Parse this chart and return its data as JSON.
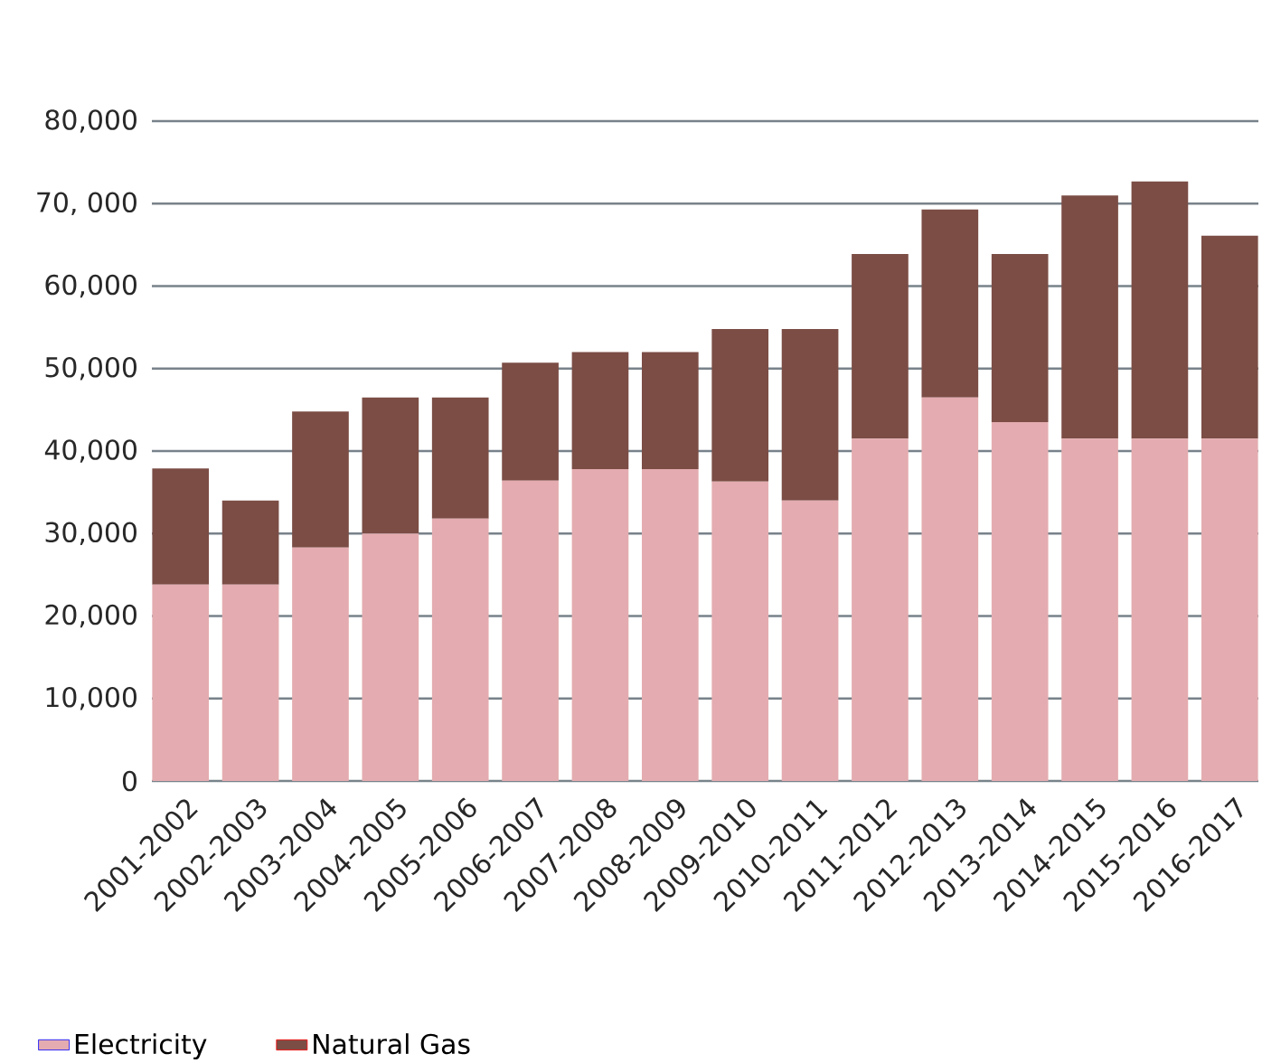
{
  "chart_data": {
    "type": "bar",
    "stacked": true,
    "categories": [
      "2001-2002",
      "2002-2003",
      "2003-2004",
      "2004-2005",
      "2005-2006",
      "2006-2007",
      "2007-2008",
      "2008-2009",
      "2009-2010",
      "2010-2011",
      "2011-2012",
      "2012-2013",
      "2013-2014",
      "2014-2015",
      "2015-2016",
      "2016-2017"
    ],
    "series": [
      {
        "name": "Electricity",
        "color": "#e4acb0",
        "values": [
          23800,
          23800,
          28300,
          30000,
          31800,
          36400,
          37800,
          37800,
          36300,
          34000,
          41500,
          46500,
          43500,
          41500,
          41500,
          41500
        ]
      },
      {
        "name": "Natural Gas",
        "color": "#7b4d45",
        "values": [
          14100,
          10200,
          16500,
          16500,
          14700,
          14300,
          14200,
          14200,
          18500,
          20800,
          22400,
          22800,
          20400,
          29500,
          31200,
          24600
        ]
      }
    ],
    "ylim": [
      0,
      80000
    ],
    "yticks": [
      {
        "value": 0,
        "label": "0"
      },
      {
        "value": 10000,
        "label": "10,000"
      },
      {
        "value": 20000,
        "label": "20,000"
      },
      {
        "value": 30000,
        "label": "30,000"
      },
      {
        "value": 40000,
        "label": "40,000"
      },
      {
        "value": 50000,
        "label": "50,000"
      },
      {
        "value": 60000,
        "label": "60,000"
      },
      {
        "value": 70000,
        "label": "70, 000"
      },
      {
        "value": 80000,
        "label": "80,000"
      }
    ],
    "grid": "y",
    "legend": "bottom left"
  }
}
